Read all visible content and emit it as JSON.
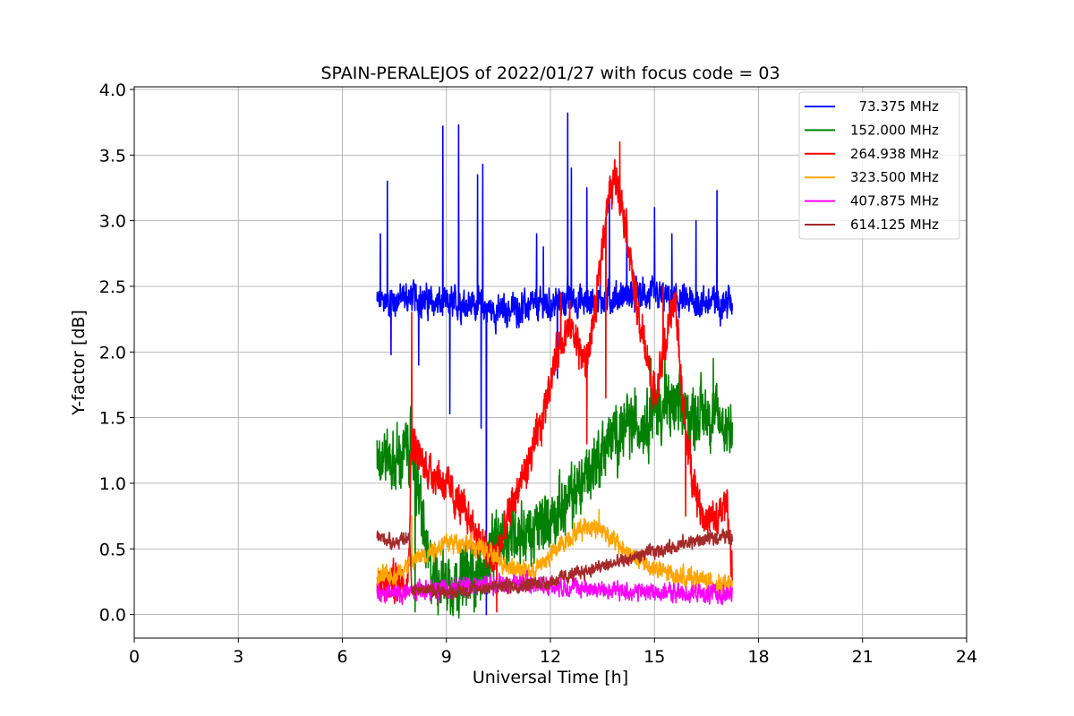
{
  "chart_data": {
    "type": "line",
    "title": "SPAIN-PERALEJOS of 2022/01/27 with focus code = 03",
    "xlabel": "Universal Time [h]",
    "ylabel": "Y-factor [dB]",
    "xlim": [
      0,
      24
    ],
    "ylim": [
      -0.18,
      4.02
    ],
    "xticks": [
      0,
      3,
      6,
      9,
      12,
      15,
      18,
      21,
      24
    ],
    "xtick_labels": [
      "0",
      "3",
      "6",
      "9",
      "12",
      "15",
      "18",
      "21",
      "24"
    ],
    "yticks": [
      0,
      0.5,
      1,
      1.5,
      2,
      2.5,
      3,
      3.5,
      4
    ],
    "ytick_labels": [
      "0.0",
      "0.5",
      "1.0",
      "1.5",
      "2.0",
      "2.5",
      "3.0",
      "3.5",
      "4.0"
    ],
    "grid": true,
    "legend_position": "top-right",
    "series": [
      {
        "name": "73.375 MHz",
        "legend_label": "  73.375 MHz",
        "color": "#0000ff",
        "noise": 0.08,
        "x": [
          7.0,
          7.5,
          8.0,
          8.5,
          9.0,
          9.5,
          10.0,
          10.5,
          11.0,
          11.5,
          12.0,
          12.5,
          13.0,
          13.5,
          14.0,
          14.5,
          15.0,
          15.5,
          16.0,
          16.5,
          17.0,
          17.25
        ],
        "y": [
          2.38,
          2.4,
          2.42,
          2.38,
          2.36,
          2.38,
          2.35,
          2.3,
          2.33,
          2.35,
          2.36,
          2.4,
          2.38,
          2.4,
          2.42,
          2.45,
          2.42,
          2.4,
          2.38,
          2.38,
          2.38,
          2.38
        ],
        "spikes": [
          [
            7.1,
            2.9
          ],
          [
            7.3,
            3.3
          ],
          [
            7.4,
            1.98
          ],
          [
            8.2,
            1.9
          ],
          [
            8.25,
            2.5
          ],
          [
            8.9,
            3.72
          ],
          [
            9.1,
            1.53
          ],
          [
            9.35,
            3.73
          ],
          [
            9.9,
            3.35
          ],
          [
            10.0,
            1.42
          ],
          [
            10.05,
            3.43
          ],
          [
            10.15,
            0.0
          ],
          [
            11.6,
            2.9
          ],
          [
            11.8,
            2.8
          ],
          [
            12.2,
            1.8
          ],
          [
            12.5,
            3.82
          ],
          [
            12.6,
            3.4
          ],
          [
            13.05,
            3.25
          ],
          [
            13.7,
            3.2
          ],
          [
            14.2,
            2.9
          ],
          [
            15.0,
            3.1
          ],
          [
            15.5,
            2.9
          ],
          [
            16.2,
            3.0
          ],
          [
            16.8,
            3.23
          ]
        ]
      },
      {
        "name": "152.000 MHz",
        "legend_label": "152.000 MHz",
        "color": "#008000",
        "noise": 0.16,
        "x": [
          7.0,
          7.5,
          8.0,
          8.5,
          9.0,
          9.5,
          10.0,
          10.5,
          11.0,
          11.5,
          12.0,
          12.5,
          13.0,
          13.5,
          14.0,
          14.5,
          15.0,
          15.5,
          16.0,
          16.5,
          17.0,
          17.25
        ],
        "y": [
          1.25,
          1.15,
          1.3,
          0.35,
          0.25,
          0.28,
          0.32,
          0.55,
          0.65,
          0.6,
          0.75,
          0.85,
          1.05,
          1.25,
          1.4,
          1.45,
          1.55,
          1.58,
          1.5,
          1.55,
          1.45,
          1.45
        ],
        "spikes": [
          [
            8.1,
            0.02
          ],
          [
            9.8,
            0.02
          ],
          [
            14.9,
            1.95
          ],
          [
            15.3,
            1.95
          ],
          [
            16.7,
            1.95
          ]
        ]
      },
      {
        "name": "264.938 MHz",
        "legend_label": "264.938 MHz",
        "color": "#ff0000",
        "noise": 0.1,
        "x": [
          7.0,
          7.5,
          7.9,
          8.0,
          8.3,
          8.8,
          9.2,
          9.6,
          10.0,
          10.3,
          10.6,
          10.9,
          11.3,
          11.7,
          12.0,
          12.3,
          12.6,
          12.8,
          13.0,
          13.3,
          13.6,
          13.9,
          14.2,
          14.5,
          14.8,
          15.0,
          15.3,
          15.6,
          15.9,
          16.2,
          16.5,
          16.9,
          17.1,
          17.25
        ],
        "y": [
          0.2,
          0.25,
          0.3,
          1.35,
          1.15,
          1.05,
          0.9,
          0.75,
          0.55,
          0.4,
          0.55,
          0.85,
          1.1,
          1.4,
          1.8,
          2.1,
          2.2,
          2.05,
          1.9,
          2.3,
          3.1,
          3.35,
          2.95,
          2.3,
          1.95,
          1.65,
          2.05,
          2.4,
          1.35,
          0.95,
          0.7,
          0.75,
          0.9,
          0.25
        ],
        "spikes": [
          [
            8.0,
            2.3
          ],
          [
            10.45,
            0.02
          ],
          [
            12.3,
            2.45
          ],
          [
            13.05,
            1.3
          ],
          [
            13.6,
            1.65
          ],
          [
            14.0,
            3.6
          ],
          [
            15.25,
            2.5
          ],
          [
            15.9,
            0.75
          ],
          [
            16.8,
            0.6
          ]
        ]
      },
      {
        "name": "323.500 MHz",
        "legend_label": "323.500 MHz",
        "color": "#ffa500",
        "noise": 0.05,
        "x": [
          7.0,
          7.5,
          8.0,
          8.5,
          9.0,
          9.5,
          10.0,
          10.5,
          11.0,
          11.5,
          12.0,
          12.5,
          13.0,
          13.5,
          14.0,
          14.5,
          15.0,
          15.5,
          16.0,
          16.5,
          17.0,
          17.25
        ],
        "y": [
          0.28,
          0.3,
          0.4,
          0.48,
          0.55,
          0.55,
          0.5,
          0.42,
          0.35,
          0.32,
          0.45,
          0.58,
          0.68,
          0.65,
          0.52,
          0.42,
          0.35,
          0.3,
          0.28,
          0.25,
          0.22,
          0.22
        ],
        "spikes": [
          [
            8.0,
            0.75
          ],
          [
            13.4,
            0.8
          ]
        ]
      },
      {
        "name": "407.875 MHz",
        "legend_label": "407.875 MHz",
        "color": "#ff00ff",
        "noise": 0.045,
        "x": [
          7.0,
          8.0,
          9.0,
          10.0,
          11.0,
          12.0,
          13.0,
          14.0,
          15.0,
          16.0,
          17.0,
          17.25
        ],
        "y": [
          0.15,
          0.17,
          0.2,
          0.23,
          0.24,
          0.22,
          0.2,
          0.18,
          0.17,
          0.16,
          0.15,
          0.15
        ],
        "spikes": []
      },
      {
        "name": "614.125 MHz",
        "legend_label": "614.125 MHz",
        "color": "#a52a2a",
        "noise": 0.035,
        "x": [
          7.0,
          7.5,
          7.95,
          8.0,
          9.0,
          10.0,
          11.0,
          12.0,
          13.0,
          14.0,
          15.0,
          16.0,
          17.0,
          17.25
        ],
        "y": [
          0.6,
          0.55,
          0.58,
          0.2,
          0.17,
          0.2,
          0.22,
          0.25,
          0.33,
          0.4,
          0.48,
          0.55,
          0.6,
          0.58
        ],
        "spikes": []
      }
    ]
  }
}
